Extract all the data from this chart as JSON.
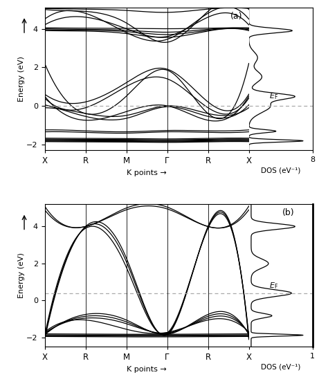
{
  "panel_a": {
    "label": "(a)",
    "ylim": [
      -2.3,
      5.1
    ],
    "yticks": [
      -2,
      0,
      2,
      4
    ],
    "fermi_level": 0.0,
    "kpoints": [
      "X",
      "R",
      "M",
      "Γ",
      "R",
      "X"
    ],
    "kpos": [
      0,
      1,
      2,
      3,
      4,
      5
    ],
    "dos_xlabel": "DOS (eV⁻¹)",
    "dos_xlim": [
      0,
      8
    ],
    "dos_xtick": 8,
    "ylabel": "Energy (eV)"
  },
  "panel_b": {
    "label": "(b)",
    "ylim": [
      -2.5,
      5.2
    ],
    "yticks": [
      -2,
      0,
      2,
      4
    ],
    "fermi_level": 0.4,
    "kpoints": [
      "X",
      "R",
      "M",
      "Γ",
      "R",
      "X"
    ],
    "kpos": [
      0,
      1,
      2,
      3,
      4,
      5
    ],
    "dos_xlabel": "DOS (eV⁻¹)",
    "dos_xlim": [
      0,
      1
    ],
    "dos_xtick": 1,
    "ylabel": "Energy (eV)"
  },
  "background_color": "#ffffff",
  "line_color": "#000000",
  "dashed_color": "#aaaaaa",
  "figsize": [
    4.61,
    5.45
  ],
  "dpi": 100
}
